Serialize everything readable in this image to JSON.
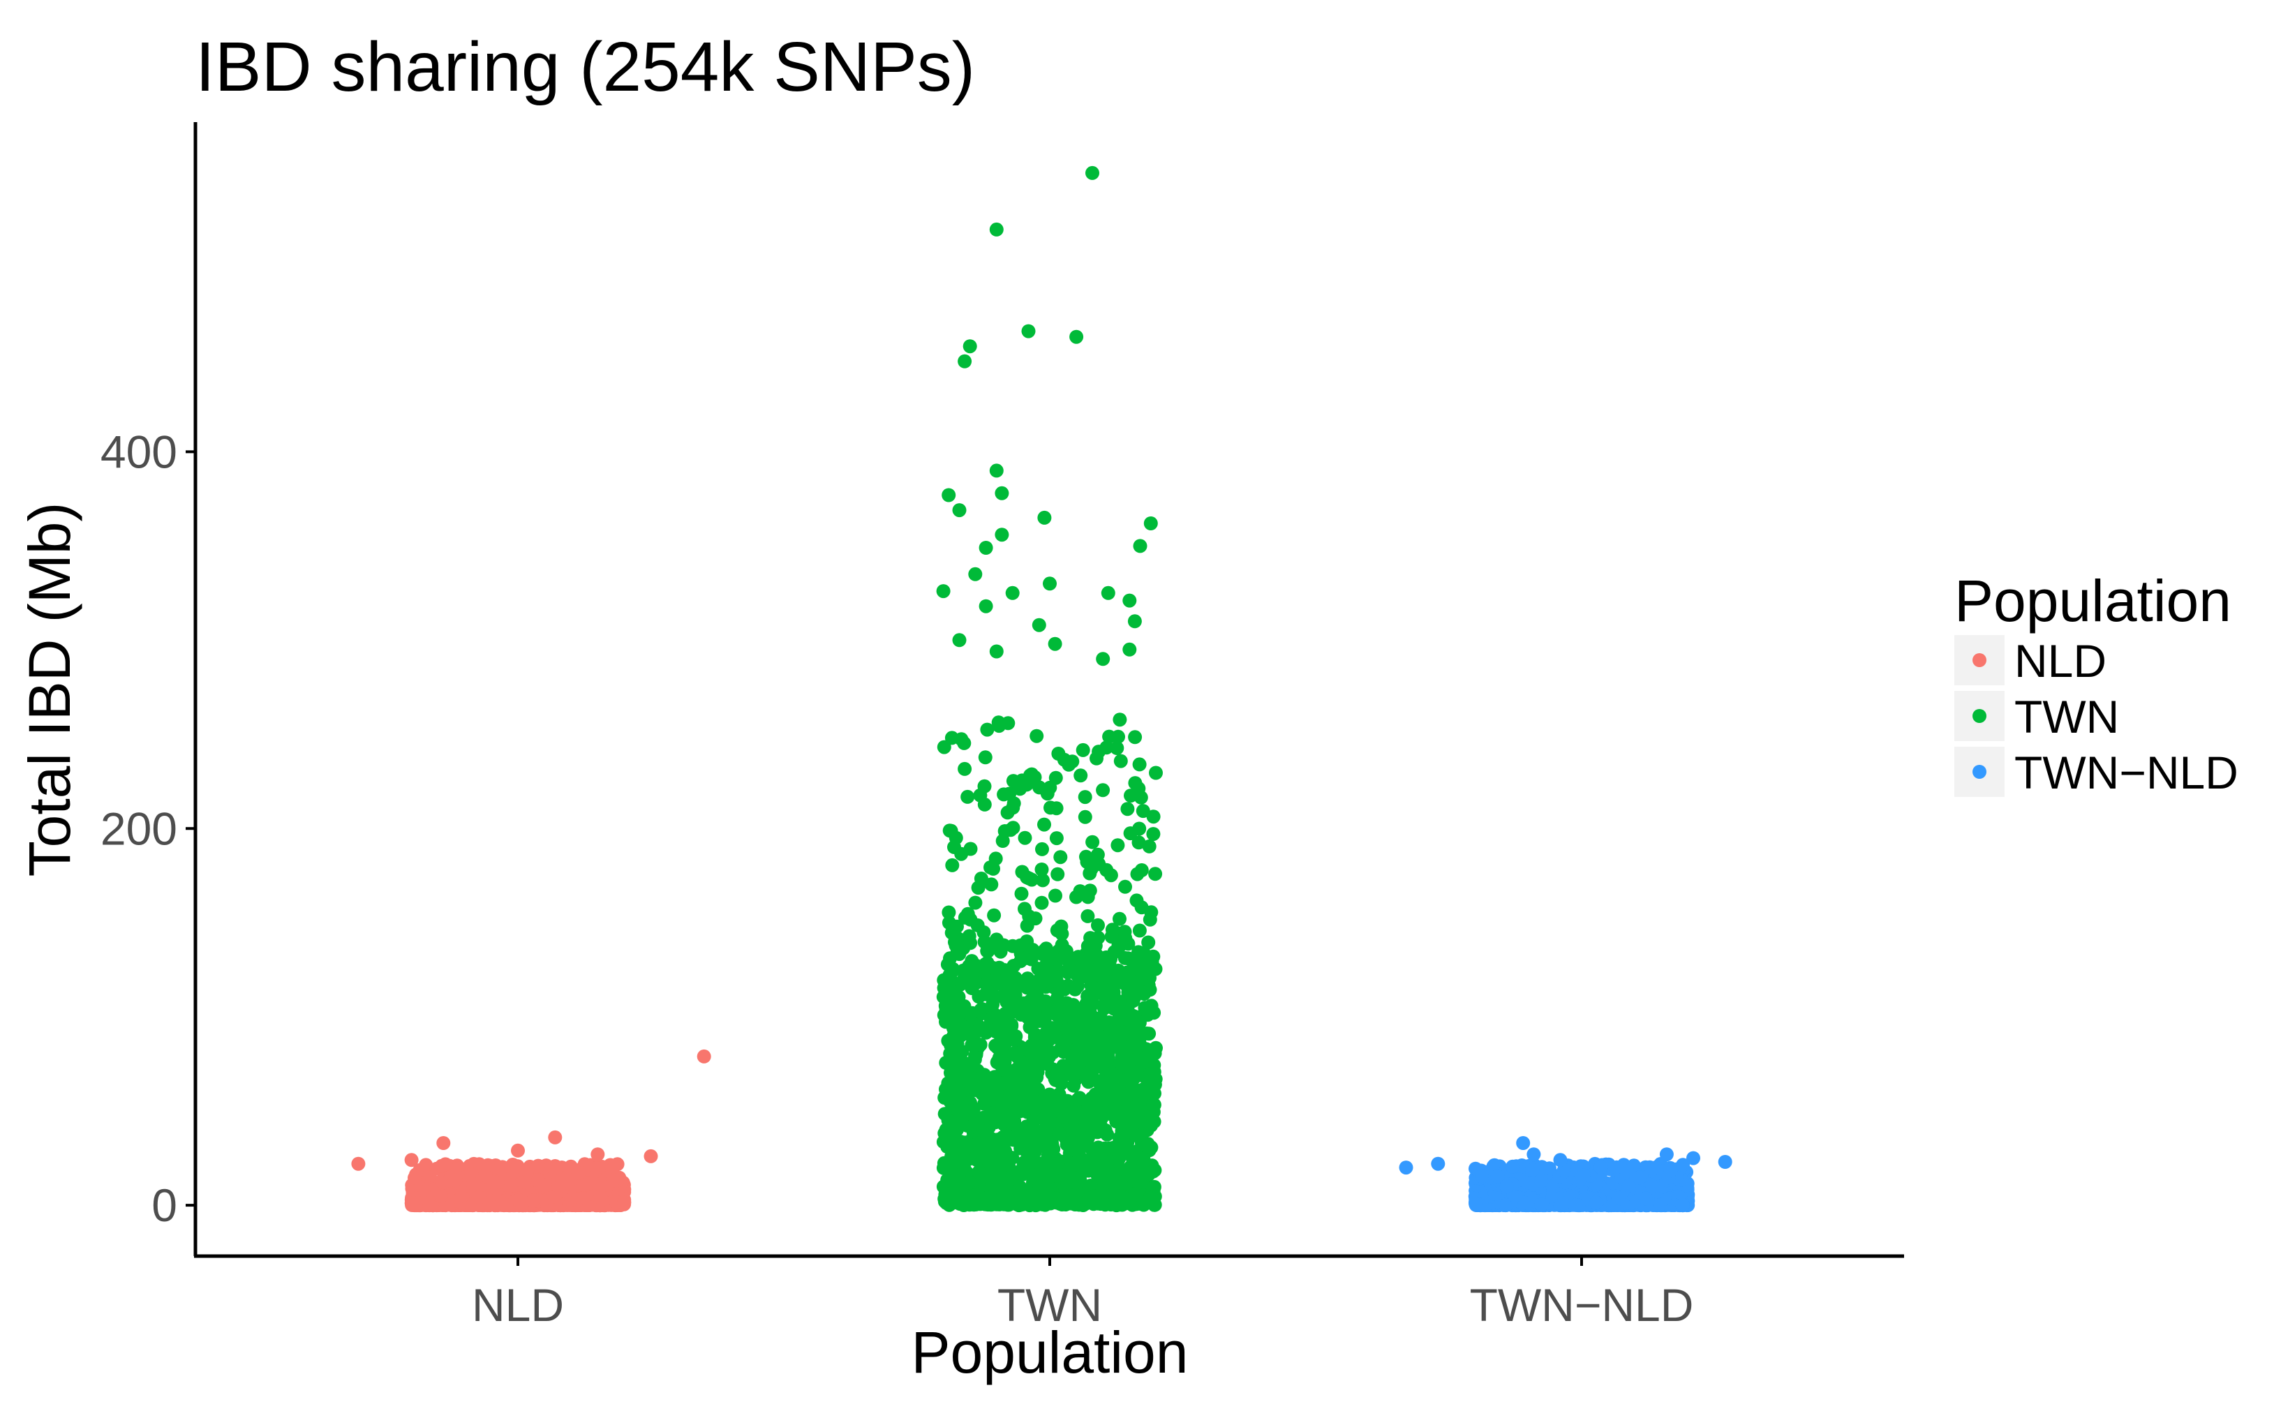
{
  "chart_data": {
    "type": "scatter",
    "subtype": "jitter-strip",
    "title": "IBD sharing (254k SNPs)",
    "xlabel": "Population",
    "ylabel": "Total IBD (Mb)",
    "categories": [
      "NLD",
      "TWN",
      "TWN−NLD"
    ],
    "y_ticks": [
      0,
      200,
      400
    ],
    "y_tick_labels": [
      "0",
      "200",
      "400"
    ],
    "ylim": [
      -27,
      575
    ],
    "grid": false,
    "legend": {
      "title": "Population",
      "position": "right",
      "entries": [
        "NLD",
        "TWN",
        "TWN−NLD"
      ]
    },
    "colors": {
      "NLD": "#F8766D",
      "TWN": "#00BA38",
      "TWN-NLD": "#3399FF",
      "axis": "#000000",
      "legend_key_bg": "#F2F2F2"
    },
    "series": [
      {
        "name": "NLD",
        "jitter_width": 0.4,
        "bulk_range": [
          0,
          12
        ],
        "notable_points": [
          {
            "x_offset": 0.35,
            "y": 79
          },
          {
            "x_offset": 0.07,
            "y": 36
          },
          {
            "x_offset": -0.14,
            "y": 33
          },
          {
            "x_offset": 0.0,
            "y": 29
          },
          {
            "x_offset": 0.15,
            "y": 27
          },
          {
            "x_offset": 0.25,
            "y": 26
          },
          {
            "x_offset": -0.2,
            "y": 24
          },
          {
            "x_offset": -0.3,
            "y": 22
          }
        ]
      },
      {
        "name": "TWN",
        "jitter_width": 0.4,
        "bulk_range": [
          0,
          130
        ],
        "upper_range": [
          130,
          260
        ],
        "notable_points": [
          {
            "x_offset": 0.08,
            "y": 548
          },
          {
            "x_offset": -0.1,
            "y": 518
          },
          {
            "x_offset": -0.04,
            "y": 464
          },
          {
            "x_offset": 0.05,
            "y": 461
          },
          {
            "x_offset": -0.15,
            "y": 456
          },
          {
            "x_offset": -0.16,
            "y": 448
          },
          {
            "x_offset": -0.1,
            "y": 390
          },
          {
            "x_offset": -0.09,
            "y": 378
          },
          {
            "x_offset": -0.19,
            "y": 377
          },
          {
            "x_offset": -0.17,
            "y": 369
          },
          {
            "x_offset": -0.01,
            "y": 365
          },
          {
            "x_offset": 0.19,
            "y": 362
          },
          {
            "x_offset": -0.09,
            "y": 356
          },
          {
            "x_offset": 0.17,
            "y": 350
          },
          {
            "x_offset": -0.12,
            "y": 349
          },
          {
            "x_offset": -0.14,
            "y": 335
          },
          {
            "x_offset": 0.0,
            "y": 330
          },
          {
            "x_offset": -0.2,
            "y": 326
          },
          {
            "x_offset": -0.07,
            "y": 325
          },
          {
            "x_offset": 0.11,
            "y": 325
          },
          {
            "x_offset": 0.15,
            "y": 321
          },
          {
            "x_offset": -0.12,
            "y": 318
          },
          {
            "x_offset": 0.16,
            "y": 310
          },
          {
            "x_offset": -0.02,
            "y": 308
          },
          {
            "x_offset": -0.17,
            "y": 300
          },
          {
            "x_offset": 0.01,
            "y": 298
          },
          {
            "x_offset": 0.15,
            "y": 295
          },
          {
            "x_offset": -0.1,
            "y": 294
          },
          {
            "x_offset": 0.1,
            "y": 290
          }
        ]
      },
      {
        "name": "TWN−NLD",
        "jitter_width": 0.4,
        "bulk_range": [
          0,
          12
        ],
        "notable_points": [
          {
            "x_offset": -0.11,
            "y": 33
          },
          {
            "x_offset": -0.09,
            "y": 27
          },
          {
            "x_offset": 0.16,
            "y": 27
          },
          {
            "x_offset": 0.21,
            "y": 25
          },
          {
            "x_offset": -0.04,
            "y": 24
          },
          {
            "x_offset": 0.27,
            "y": 23
          },
          {
            "x_offset": -0.27,
            "y": 22
          },
          {
            "x_offset": -0.33,
            "y": 20
          }
        ]
      }
    ]
  }
}
